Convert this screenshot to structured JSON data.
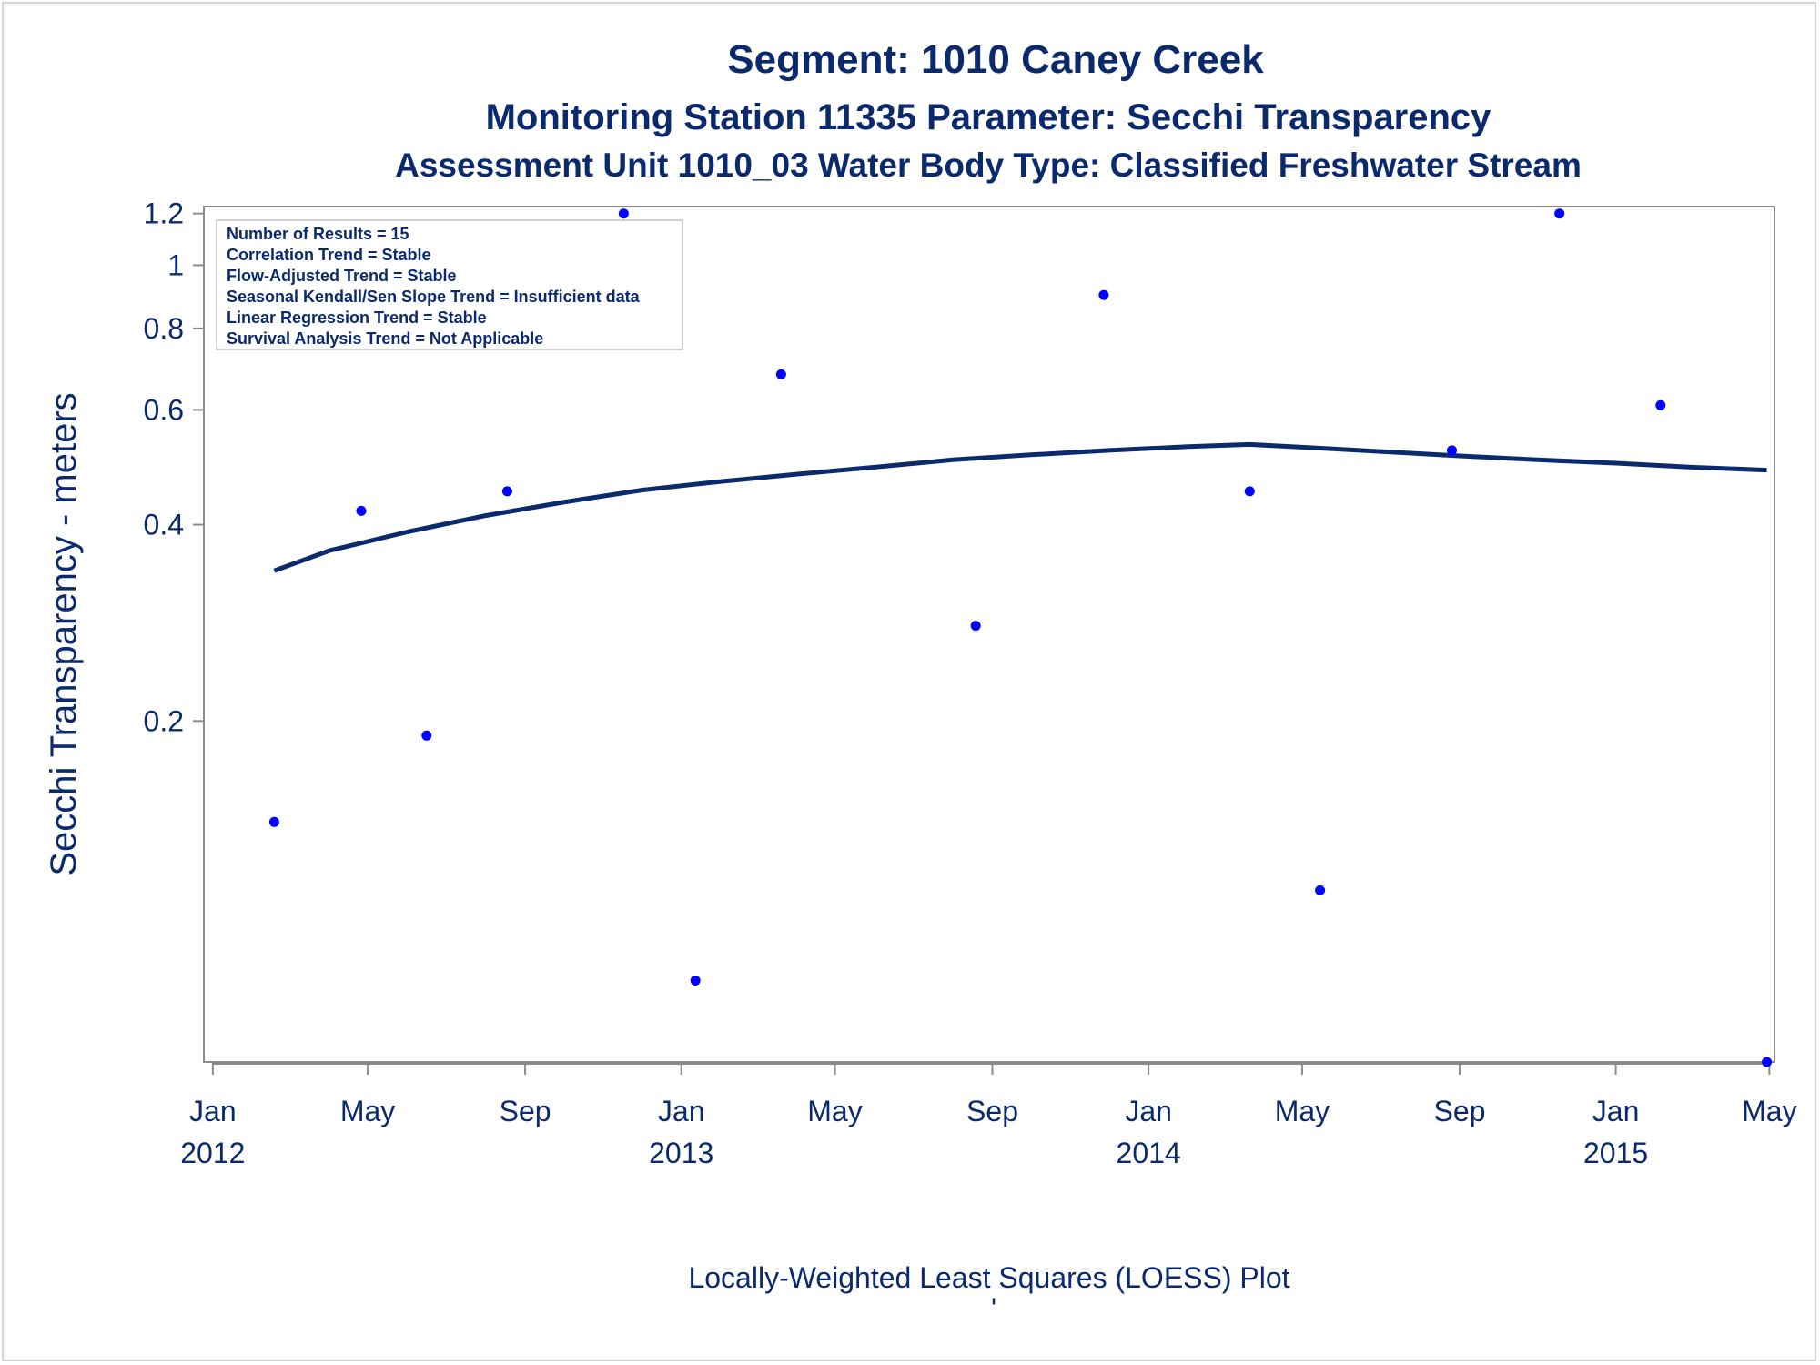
{
  "chart_data": {
    "type": "scatter",
    "title": "Segment: 1010  Caney Creek",
    "subtitle": "Monitoring Station 11335 Parameter: Secchi Transparency",
    "subtitle2": "Assessment Unit 1010_03   Water Body Type: Classified Freshwater Stream",
    "ylabel": "Secchi Transparency - meters",
    "xlabel": "",
    "footnote": "Locally-Weighted Least Squares (LOESS) Plot",
    "footnote_mark": "'",
    "y_scale": "log",
    "ylim": [
      0.06,
      1.23
    ],
    "xlim": [
      "2011-12-25",
      "2015-05-05"
    ],
    "y_ticks": [
      {
        "value": 0.2,
        "label": "0.2"
      },
      {
        "value": 0.4,
        "label": "0.4"
      },
      {
        "value": 0.6,
        "label": "0.6"
      },
      {
        "value": 0.8,
        "label": "0.8"
      },
      {
        "value": 1.0,
        "label": "1"
      },
      {
        "value": 1.2,
        "label": "1.2"
      }
    ],
    "x_ticks": [
      {
        "date": "2012-01-01",
        "month": "Jan",
        "year": "2012"
      },
      {
        "date": "2012-05-01",
        "month": "May",
        "year": ""
      },
      {
        "date": "2012-09-01",
        "month": "Sep",
        "year": ""
      },
      {
        "date": "2013-01-01",
        "month": "Jan",
        "year": "2013"
      },
      {
        "date": "2013-05-01",
        "month": "May",
        "year": ""
      },
      {
        "date": "2013-09-01",
        "month": "Sep",
        "year": ""
      },
      {
        "date": "2014-01-01",
        "month": "Jan",
        "year": "2014"
      },
      {
        "date": "2014-05-01",
        "month": "May",
        "year": ""
      },
      {
        "date": "2014-09-01",
        "month": "Sep",
        "year": ""
      },
      {
        "date": "2015-01-01",
        "month": "Jan",
        "year": "2015"
      },
      {
        "date": "2015-05-01",
        "month": "May",
        "year": ""
      }
    ],
    "points": [
      {
        "date": "2012-02-18",
        "value": 0.14
      },
      {
        "date": "2012-04-26",
        "value": 0.42
      },
      {
        "date": "2012-06-16",
        "value": 0.19
      },
      {
        "date": "2012-08-18",
        "value": 0.45
      },
      {
        "date": "2012-11-17",
        "value": 1.2
      },
      {
        "date": "2013-01-12",
        "value": 0.08
      },
      {
        "date": "2013-03-20",
        "value": 0.68
      },
      {
        "date": "2013-08-19",
        "value": 0.28
      },
      {
        "date": "2013-11-27",
        "value": 0.9
      },
      {
        "date": "2014-03-21",
        "value": 0.45
      },
      {
        "date": "2014-05-15",
        "value": 0.11
      },
      {
        "date": "2014-08-26",
        "value": 0.52
      },
      {
        "date": "2014-11-18",
        "value": 1.2
      },
      {
        "date": "2015-02-05",
        "value": 0.61
      },
      {
        "date": "2015-04-29",
        "value": 0.06
      }
    ],
    "loess": [
      {
        "date": "2012-02-18",
        "value": 0.34
      },
      {
        "date": "2012-04-01",
        "value": 0.365
      },
      {
        "date": "2012-06-01",
        "value": 0.39
      },
      {
        "date": "2012-08-01",
        "value": 0.413
      },
      {
        "date": "2012-10-01",
        "value": 0.433
      },
      {
        "date": "2012-12-01",
        "value": 0.452
      },
      {
        "date": "2013-02-01",
        "value": 0.466
      },
      {
        "date": "2013-04-01",
        "value": 0.478
      },
      {
        "date": "2013-06-01",
        "value": 0.49
      },
      {
        "date": "2013-08-01",
        "value": 0.503
      },
      {
        "date": "2013-10-01",
        "value": 0.512
      },
      {
        "date": "2013-12-01",
        "value": 0.52
      },
      {
        "date": "2014-02-01",
        "value": 0.527
      },
      {
        "date": "2014-03-21",
        "value": 0.531
      },
      {
        "date": "2014-05-01",
        "value": 0.526
      },
      {
        "date": "2014-07-01",
        "value": 0.518
      },
      {
        "date": "2014-09-01",
        "value": 0.51
      },
      {
        "date": "2014-11-01",
        "value": 0.503
      },
      {
        "date": "2015-01-01",
        "value": 0.497
      },
      {
        "date": "2015-03-01",
        "value": 0.49
      },
      {
        "date": "2015-04-29",
        "value": 0.485
      }
    ],
    "legend_placement": "top-left",
    "grid": false,
    "colors": {
      "text": "#0b2a6e",
      "points": "#0000ff",
      "line": "#0b2a6e",
      "frame": "#8c8c8c"
    }
  },
  "stats_box": [
    "Number of Results = 15",
    "Correlation Trend = Stable",
    "Flow-Adjusted Trend = Stable",
    "Seasonal Kendall/Sen Slope Trend = Insufficient data",
    "Linear Regression Trend = Stable",
    "Survival Analysis Trend = Not Applicable"
  ]
}
